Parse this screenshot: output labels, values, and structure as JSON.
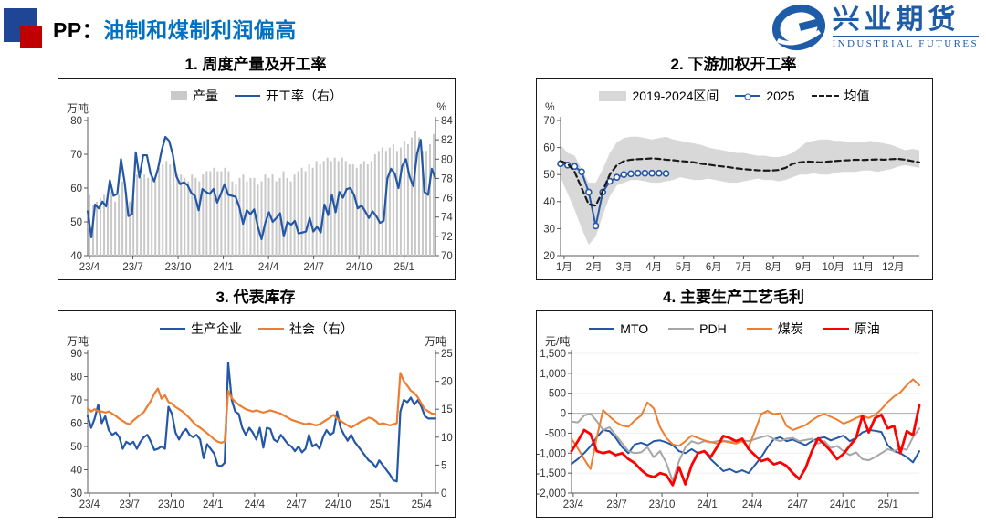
{
  "header": {
    "title_prefix": "PP：",
    "title_main": "油制和煤制利润偏高",
    "logo_cn": "兴业期货",
    "logo_en": "INDUSTRIAL FUTURES"
  },
  "colors": {
    "title_blue": "#0070c0",
    "square_blue": "#1f4596",
    "square_red": "#c00000",
    "logo_blue": "#1e5ca8",
    "line_blue": "#2457a5",
    "bar_gray": "#c9c9c9",
    "band_gray": "#d8d8d8",
    "line_gray": "#a6a6a6",
    "orange": "#ed7d31",
    "red": "#ff0000",
    "dashed_black": "#1a1a1a"
  },
  "chart_data": [
    {
      "type": "bar",
      "title": "1. 周度产量及开工率",
      "unit_left": "万吨",
      "unit_right": "%",
      "left_axis": {
        "min": 40,
        "max": 80,
        "step": 10
      },
      "right_axis": {
        "min": 70,
        "max": 84,
        "step": 2
      },
      "pad": {
        "l": 32,
        "r": 21
      },
      "x_labels": [
        "23/4",
        "23/7",
        "23/10",
        "24/1",
        "24/4",
        "24/7",
        "24/10",
        "25/1"
      ],
      "x_positions": [
        0.005,
        0.13,
        0.26,
        0.39,
        0.52,
        0.65,
        0.78,
        0.91
      ],
      "series": [
        {
          "name": "产量",
          "type": "bar",
          "axis": "left",
          "color": "#c9c9c9",
          "values": [
            58,
            55,
            56,
            57,
            58,
            58,
            59,
            56,
            58,
            62,
            59,
            56,
            57,
            64,
            63,
            64,
            63,
            64,
            62,
            66,
            67,
            68,
            67,
            68,
            64,
            64,
            63,
            62,
            64,
            63,
            62,
            64,
            65,
            65,
            66,
            65,
            65,
            66,
            65,
            62,
            61,
            63,
            64,
            62,
            63,
            63,
            61,
            62,
            64,
            63,
            64,
            62,
            63,
            65,
            63,
            62,
            64,
            65,
            66,
            65,
            67,
            66,
            68,
            67,
            68,
            69,
            68,
            69,
            68,
            69,
            68,
            67,
            67,
            66,
            67,
            68,
            67,
            68,
            70,
            71,
            72,
            71,
            72,
            73,
            71,
            72,
            74,
            73,
            75,
            77,
            75,
            71,
            71,
            73,
            76
          ]
        },
        {
          "name": "开工率（右）",
          "type": "line",
          "axis": "right",
          "color": "#2457a5",
          "w": 2.2,
          "values": [
            74.6,
            71.9,
            75.3,
            74.9,
            75.6,
            75.1,
            77.8,
            76.2,
            76.4,
            80.0,
            77.6,
            74.1,
            74.3,
            80.7,
            78.1,
            80.4,
            80.4,
            78.5,
            77.7,
            79.0,
            80.9,
            82.3,
            81.9,
            80.5,
            78.2,
            77.4,
            77.6,
            77.3,
            76.5,
            76.2,
            74.7,
            76.9,
            76.6,
            76.4,
            76.9,
            75.5,
            76.4,
            77.4,
            76.3,
            76.2,
            76.1,
            75.0,
            73.3,
            74.7,
            74.3,
            74.8,
            73.0,
            71.7,
            73.4,
            74.5,
            73.5,
            73.9,
            74.4,
            72.0,
            73.5,
            73.2,
            73.6,
            72.3,
            72.4,
            72.5,
            73.9,
            72.5,
            73.0,
            72.4,
            75.3,
            74.2,
            76.3,
            74.5,
            76.6,
            76.0,
            76.9,
            77.0,
            76.3,
            74.9,
            75.2,
            74.6,
            73.9,
            74.6,
            74.1,
            73.4,
            73.6,
            78.0,
            79.0,
            78.5,
            77.0,
            79.3,
            80.0,
            78.2,
            77.2,
            80.5,
            82.0,
            76.6,
            76.3,
            79.0,
            78.0
          ]
        }
      ]
    },
    {
      "type": "line",
      "title": "2. 下游加权开工率",
      "unit_left": "%",
      "left_axis": {
        "min": 20,
        "max": 70,
        "step": 10
      },
      "pad": {
        "l": 26,
        "r": 14
      },
      "x_labels": [
        "1月",
        "2月",
        "3月",
        "4月",
        "5月",
        "6月",
        "7月",
        "8月",
        "9月",
        "10月",
        "11月",
        "12月"
      ],
      "x_positions": [
        0.01,
        0.093,
        0.177,
        0.26,
        0.343,
        0.427,
        0.51,
        0.593,
        0.677,
        0.76,
        0.843,
        0.927
      ],
      "series": [
        {
          "name": "2019-2024区间",
          "type": "band",
          "axis": "left",
          "color": "#d8d8d8",
          "upper": [
            61,
            58,
            57,
            52,
            47,
            47,
            52,
            58,
            62,
            63.5,
            64,
            64,
            63.5,
            63,
            63.5,
            64,
            63,
            62.5,
            62,
            61.5,
            61,
            60,
            59.5,
            59,
            58.5,
            58,
            58,
            57.5,
            57,
            57,
            56.5,
            56.5,
            57,
            58,
            60,
            62,
            62.5,
            63,
            63,
            62.5,
            62.5,
            62,
            62,
            62,
            62.5,
            62,
            61.5,
            61,
            60,
            59,
            59.5,
            59
          ],
          "lower": [
            49,
            43,
            37,
            30,
            24,
            27,
            35,
            42,
            46,
            47,
            48,
            48,
            47.5,
            47,
            47,
            47.5,
            48,
            49,
            48.5,
            48,
            48,
            48.5,
            48,
            47.5,
            47,
            47,
            47.5,
            48,
            48.5,
            48,
            48,
            47.5,
            48,
            49,
            50,
            50,
            50.5,
            50,
            50,
            50.5,
            51,
            51,
            51,
            51.5,
            51.5,
            51,
            51.5,
            52,
            53,
            53.5,
            53,
            52.5
          ]
        },
        {
          "name": "2025",
          "type": "marker",
          "axis": "left",
          "color": "#2457a5",
          "w": 2,
          "span": 0.294,
          "values": [
            54,
            53.5,
            53,
            51,
            43.5,
            31,
            43.5,
            47.5,
            49,
            50,
            50.3,
            50.5,
            50.5,
            50.5,
            50.5,
            50.4
          ]
        },
        {
          "name": "均值",
          "type": "dashed",
          "axis": "left",
          "color": "#1a1a1a",
          "w": 2.2,
          "values": [
            55,
            54,
            51,
            45,
            39,
            38.5,
            44,
            50,
            53.5,
            55,
            55.5,
            55.7,
            55.8,
            56,
            55.8,
            55.5,
            55.3,
            55,
            54.8,
            54.5,
            54,
            53.7,
            53.3,
            53,
            52.7,
            52.3,
            52,
            51.8,
            51.6,
            51.5,
            51.5,
            51.7,
            52.5,
            54,
            54.5,
            54.8,
            54.7,
            54.5,
            54.8,
            55,
            55.2,
            55.3,
            55.5,
            55.4,
            55.5,
            55.6,
            55.5,
            55.7,
            55.8,
            55.5,
            55,
            54.5
          ]
        }
      ]
    },
    {
      "type": "line",
      "title": "3. 代表库存",
      "unit_left": "万吨",
      "unit_right": "万吨",
      "left_axis": {
        "min": 30,
        "max": 90,
        "step": 10
      },
      "right_axis": {
        "min": 0,
        "max": 25,
        "step": 5
      },
      "pad": {
        "l": 32,
        "r": 21
      },
      "x_labels": [
        "23/4",
        "23/7",
        "23/10",
        "24/1",
        "24/4",
        "24/7",
        "24/10",
        "25/1",
        "25/4"
      ],
      "x_positions": [
        0.005,
        0.12,
        0.24,
        0.36,
        0.48,
        0.6,
        0.72,
        0.84,
        0.96
      ],
      "series": [
        {
          "name": "生产企业",
          "type": "line",
          "axis": "left",
          "color": "#2457a5",
          "w": 2.2,
          "values": [
            63,
            58,
            62,
            68,
            60,
            63,
            57,
            55,
            56,
            54,
            49,
            52,
            51,
            52,
            49,
            52,
            54,
            55,
            52,
            48.5,
            49,
            50,
            49,
            67,
            64,
            56,
            53,
            56,
            57.5,
            55,
            54,
            55,
            53,
            45,
            51,
            49,
            47,
            42,
            41.5,
            43,
            86,
            70,
            65,
            64,
            58,
            55,
            58,
            56,
            53,
            58,
            49.5,
            58,
            57.5,
            53,
            52,
            55,
            53,
            51,
            50,
            48,
            50,
            47.5,
            49,
            55,
            50,
            51,
            49,
            54,
            57,
            55,
            56,
            65,
            58,
            55,
            52.5,
            55,
            52,
            50,
            48,
            46,
            44,
            43,
            41,
            44,
            42,
            40,
            38,
            35.5,
            35,
            65,
            70,
            69,
            71,
            68,
            70,
            67,
            63,
            62,
            62,
            62
          ]
        },
        {
          "name": "社会（右）",
          "type": "line",
          "axis": "right",
          "color": "#ed7d31",
          "w": 2.2,
          "values": [
            15.2,
            14.6,
            15,
            14.6,
            14.6,
            14.4,
            14.6,
            14.2,
            13.8,
            13.3,
            12.9,
            12.5,
            12.3,
            13,
            13.5,
            14,
            14.5,
            15.5,
            16.5,
            17.8,
            18.7,
            16.9,
            17.5,
            16.3,
            16,
            15.4,
            15,
            14.6,
            14,
            13.4,
            12.7,
            12.1,
            11.7,
            11.2,
            10.7,
            10.2,
            9.6,
            9.2,
            9.0,
            9.2,
            18.3,
            17,
            16.3,
            15.8,
            15.4,
            15,
            14.8,
            14.6,
            14.8,
            14.6,
            14.4,
            14.6,
            14.8,
            14.6,
            14.4,
            14.2,
            13.8,
            13.5,
            13.1,
            12.9,
            12.7,
            12.5,
            12.3,
            12.5,
            12.3,
            12.1,
            12.3,
            12.7,
            13.1,
            13.5,
            14,
            13.3,
            12.9,
            12.5,
            12.1,
            11.7,
            12.1,
            12.5,
            12.9,
            13.1,
            13.5,
            13.3,
            12.9,
            12.3,
            12.5,
            12.3,
            12.1,
            12.3,
            12.5,
            21.5,
            20,
            19.2,
            18.3,
            17.9,
            17.1,
            16.0,
            15.0,
            14.6,
            14.2,
            14.2
          ]
        }
      ]
    },
    {
      "type": "line",
      "title": "4. 主要生产工艺毛利",
      "unit_left": "元/吨",
      "left_axis": {
        "min": -2000,
        "max": 1500,
        "step": 500,
        "comma": true
      },
      "pad": {
        "l": 38,
        "r": 14
      },
      "grid": true,
      "zero_axis": true,
      "x_labels": [
        "23/4",
        "23/7",
        "23/10",
        "24/1",
        "24/4",
        "24/7",
        "24/10",
        "25/1"
      ],
      "x_positions": [
        0.005,
        0.13,
        0.26,
        0.39,
        0.52,
        0.65,
        0.78,
        0.91
      ],
      "series": [
        {
          "name": "MTO",
          "type": "line",
          "axis": "left",
          "color": "#2457a5",
          "w": 2,
          "values": [
            -1270,
            -1150,
            -1000,
            -830,
            -600,
            -420,
            -450,
            -620,
            -850,
            -1000,
            -780,
            -740,
            -800,
            -700,
            -680,
            -730,
            -800,
            -950,
            -1000,
            -900,
            -1000,
            -950,
            -1150,
            -1300,
            -1450,
            -1400,
            -1480,
            -1430,
            -1500,
            -1300,
            -1100,
            -850,
            -650,
            -600,
            -700,
            -660,
            -730,
            -800,
            -700,
            -630,
            -600,
            -680,
            -620,
            -560,
            -700,
            -620,
            -480,
            -420,
            -440,
            -470,
            -800,
            -950,
            -1000,
            -1100,
            -1230,
            -950
          ]
        },
        {
          "name": "PDH",
          "type": "line",
          "axis": "left",
          "color": "#a6a6a6",
          "w": 2,
          "values": [
            -210,
            -230,
            -60,
            -10,
            -200,
            -420,
            -350,
            -550,
            -750,
            -950,
            -1000,
            -980,
            -850,
            -1100,
            -950,
            -1250,
            -1700,
            -1200,
            -850,
            -700,
            -760,
            -700,
            -730,
            -700,
            -690,
            -710,
            -700,
            -680,
            -700,
            -650,
            -600,
            -560,
            -650,
            -700,
            -640,
            -620,
            -700,
            -670,
            -640,
            -760,
            -700,
            -870,
            -820,
            -950,
            -1050,
            -980,
            -1150,
            -1180,
            -1100,
            -1000,
            -900,
            -950,
            -870,
            -920,
            -600,
            -380
          ]
        },
        {
          "name": "煤炭",
          "type": "line",
          "axis": "left",
          "color": "#ed7d31",
          "w": 2,
          "values": [
            -640,
            -880,
            -1150,
            -1400,
            -600,
            80,
            -80,
            -220,
            -310,
            -340,
            -180,
            -60,
            270,
            120,
            -350,
            -620,
            -780,
            -820,
            -700,
            -560,
            -620,
            -680,
            -720,
            -760,
            -700,
            -730,
            -760,
            -700,
            -850,
            -450,
            -20,
            60,
            -30,
            0,
            -320,
            -420,
            -360,
            -300,
            -180,
            -80,
            -20,
            -90,
            -160,
            -260,
            -200,
            -120,
            -60,
            -120,
            -40,
            100,
            280,
            420,
            520,
            700,
            850,
            700
          ]
        },
        {
          "name": "原油",
          "type": "line",
          "axis": "left",
          "color": "#ff0000",
          "w": 2.8,
          "values": [
            -950,
            -700,
            -420,
            -520,
            -950,
            -1000,
            -960,
            -1050,
            -1000,
            -1150,
            -1250,
            -1420,
            -1550,
            -1600,
            -1500,
            -1550,
            -1800,
            -1350,
            -1780,
            -1300,
            -1000,
            -950,
            -1100,
            -850,
            -570,
            -620,
            -700,
            -640,
            -900,
            -1050,
            -1200,
            -1150,
            -1280,
            -1230,
            -1320,
            -1500,
            -1650,
            -1380,
            -950,
            -630,
            -780,
            -950,
            -1150,
            -1020,
            -820,
            -620,
            -60,
            -480,
            -120,
            -40,
            -380,
            -320,
            -1000,
            -450,
            -550,
            200
          ]
        }
      ]
    }
  ]
}
